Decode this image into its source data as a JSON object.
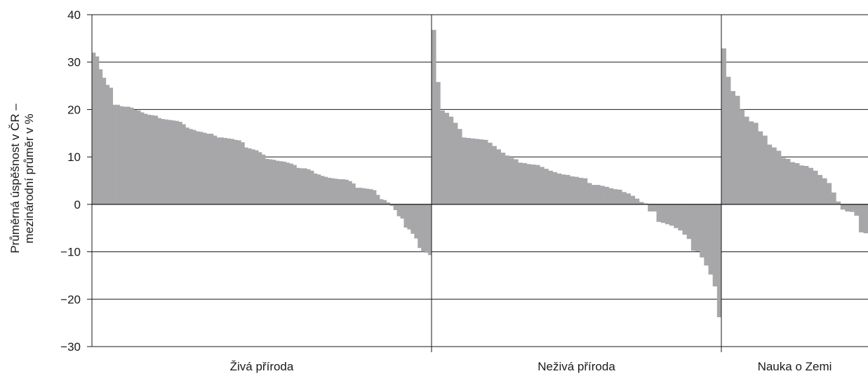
{
  "chart_data": {
    "type": "bar",
    "ylabel_lines": [
      "Průměrná úspěšnost v ČR –",
      "mezinárodní průměr v %"
    ],
    "ylim": [
      -30,
      40
    ],
    "yticks": [
      "40",
      "30",
      "20",
      "10",
      "0",
      "−10",
      "−20",
      "−30"
    ],
    "ytick_values": [
      40,
      30,
      20,
      10,
      0,
      -10,
      -20,
      -30
    ],
    "grid": true,
    "bar_color": "#a7a7aa",
    "groups": [
      {
        "label": "Živá příroda",
        "values": [
          32,
          31.2,
          28.5,
          26.7,
          25.2,
          24.6,
          21,
          21,
          20.7,
          20.6,
          20.6,
          20.4,
          19.9,
          19.8,
          19.4,
          19.1,
          18.9,
          18.8,
          18.7,
          18.2,
          18,
          17.9,
          17.8,
          17.7,
          17.6,
          17.4,
          16.9,
          16.2,
          15.9,
          15.7,
          15.4,
          15.3,
          15.1,
          14.9,
          14.9,
          14.5,
          14.1,
          14.1,
          14,
          13.9,
          13.8,
          13.6,
          13.5,
          13.1,
          12,
          11.8,
          11.6,
          11.4,
          11,
          10.5,
          9.6,
          9.5,
          9.4,
          9.2,
          9.1,
          9,
          8.8,
          8.6,
          8.3,
          7.7,
          7.6,
          7.6,
          7.4,
          7.1,
          6.5,
          6.3,
          6,
          5.8,
          5.6,
          5.5,
          5.4,
          5.3,
          5.3,
          5.2,
          4.9,
          4.4,
          3.5,
          3.5,
          3.4,
          3.3,
          3.2,
          3,
          2,
          1.1,
          0.9,
          0.4,
          -0.3,
          -1.2,
          -2.5,
          -3,
          -4.9,
          -5.3,
          -6.2,
          -7.2,
          -9.2,
          -10,
          -10.2,
          -10.7
        ]
      },
      {
        "label": "Neživá příroda",
        "values": [
          36.8,
          25.8,
          19.8,
          19.3,
          18.5,
          17.2,
          15.9,
          14.1,
          14,
          13.9,
          13.8,
          13.7,
          13.6,
          13,
          12.3,
          11.6,
          10.9,
          10.3,
          9.8,
          9.5,
          8.8,
          8.7,
          8.5,
          8.4,
          8.3,
          7.9,
          7.5,
          7.1,
          6.8,
          6.5,
          6.3,
          6.2,
          5.9,
          5.8,
          5.6,
          5.5,
          4.5,
          4.1,
          4.1,
          3.9,
          3.7,
          3.4,
          3.2,
          3.1,
          2.6,
          2.3,
          1.8,
          1.2,
          0.5,
          0.2,
          -1.5,
          -1.5,
          -3.7,
          -3.9,
          -4.2,
          -4.5,
          -5,
          -5.5,
          -6.4,
          -7.3,
          -9.8,
          -9.9,
          -11.2,
          -12.9,
          -14.8,
          -17.3,
          -23.8
        ]
      },
      {
        "label": "Nauka o Zemi",
        "values": [
          32.9,
          26.9,
          23.9,
          22.9,
          20,
          18.5,
          17.5,
          17.2,
          15.4,
          14.5,
          12.6,
          12,
          11.3,
          9.8,
          9.6,
          8.9,
          8.7,
          8.2,
          8.1,
          7.7,
          7.1,
          6.2,
          5.5,
          4.5,
          2.5,
          0.6,
          -1.1,
          -1.5,
          -1.6,
          -2.4,
          -5.9,
          -6.1
        ]
      }
    ]
  }
}
